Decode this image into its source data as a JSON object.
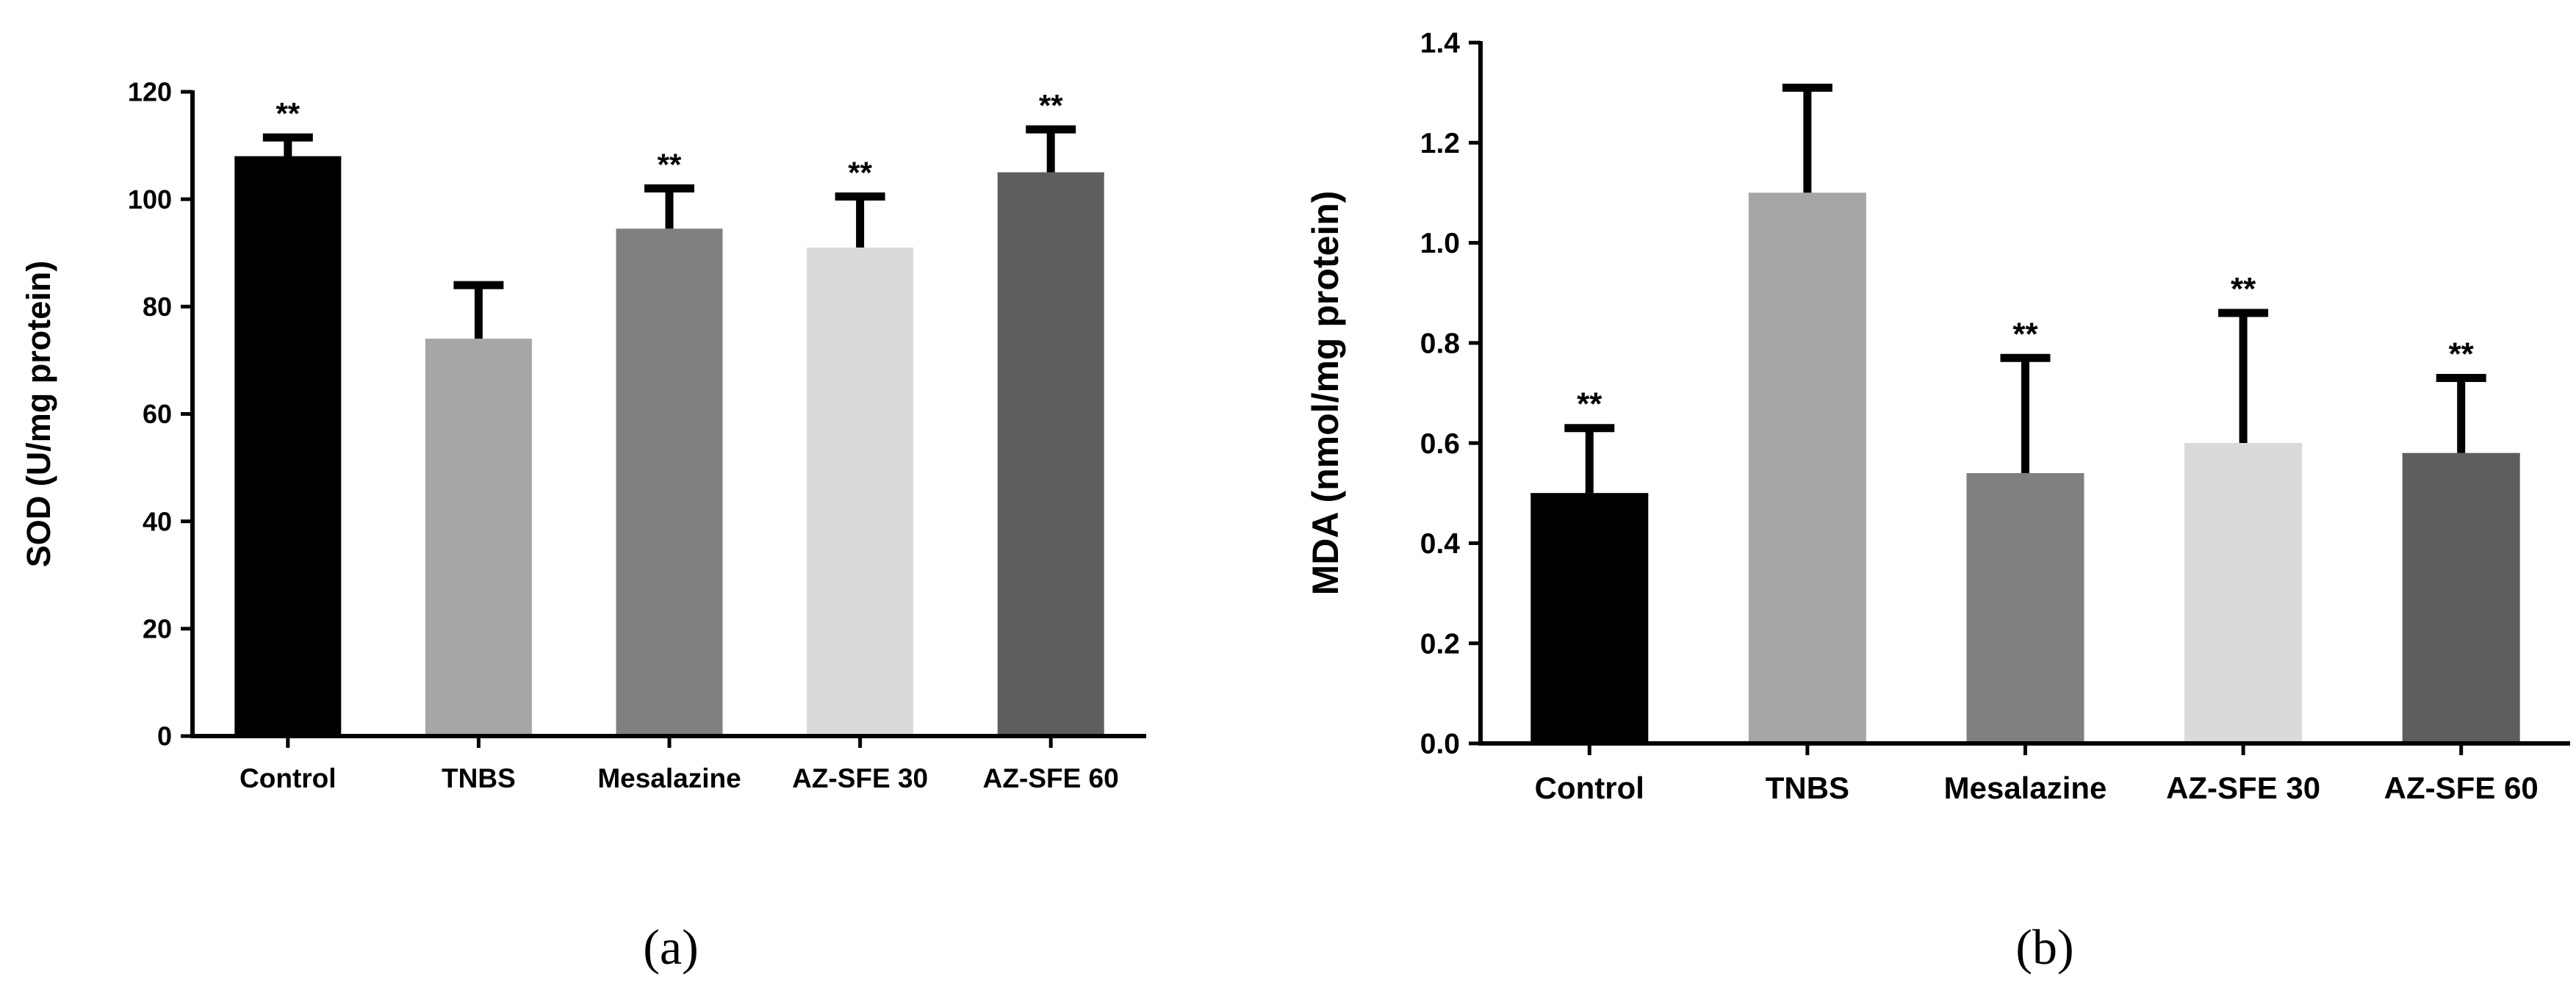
{
  "chart_data": [
    {
      "type": "bar",
      "panel_label": "(a)",
      "ylabel": "SOD (U/mg protein)",
      "xlabel": "",
      "categories": [
        "Control",
        "TNBS",
        "Mesalazine",
        "AZ-SFE 30",
        "AZ-SFE 60"
      ],
      "values": [
        108,
        74,
        94.5,
        91,
        105
      ],
      "errors": [
        3.5,
        10,
        7.5,
        9.5,
        8
      ],
      "significance": [
        "**",
        "",
        "**",
        "**",
        "**"
      ],
      "bar_colors": [
        "#000000",
        "#a6a6a6",
        "#808080",
        "#dadada",
        "#5e5e5e"
      ],
      "ylim": [
        0,
        120
      ],
      "yticks": [
        0,
        20,
        40,
        60,
        80,
        100,
        120
      ],
      "ytick_labels": [
        "0",
        "20",
        "40",
        "60",
        "80",
        "100",
        "120"
      ],
      "grid": false
    },
    {
      "type": "bar",
      "panel_label": "(b)",
      "ylabel": "MDA (nmol/mg protein)",
      "xlabel": "",
      "categories": [
        "Control",
        "TNBS",
        "Mesalazine",
        "AZ-SFE 30",
        "AZ-SFE 60"
      ],
      "values": [
        0.5,
        1.1,
        0.54,
        0.6,
        0.58
      ],
      "errors": [
        0.13,
        0.21,
        0.23,
        0.26,
        0.15
      ],
      "significance": [
        "**",
        "",
        "**",
        "**",
        "**"
      ],
      "bar_colors": [
        "#000000",
        "#a6a6a6",
        "#808080",
        "#dadada",
        "#5e5e5e"
      ],
      "ylim": [
        0,
        1.4
      ],
      "yticks": [
        0,
        0.2,
        0.4,
        0.6,
        0.8,
        1.0,
        1.2,
        1.4
      ],
      "ytick_labels": [
        "0.0",
        "0.2",
        "0.4",
        "0.6",
        "0.8",
        "1.0",
        "1.2",
        "1.4"
      ],
      "grid": false
    }
  ]
}
